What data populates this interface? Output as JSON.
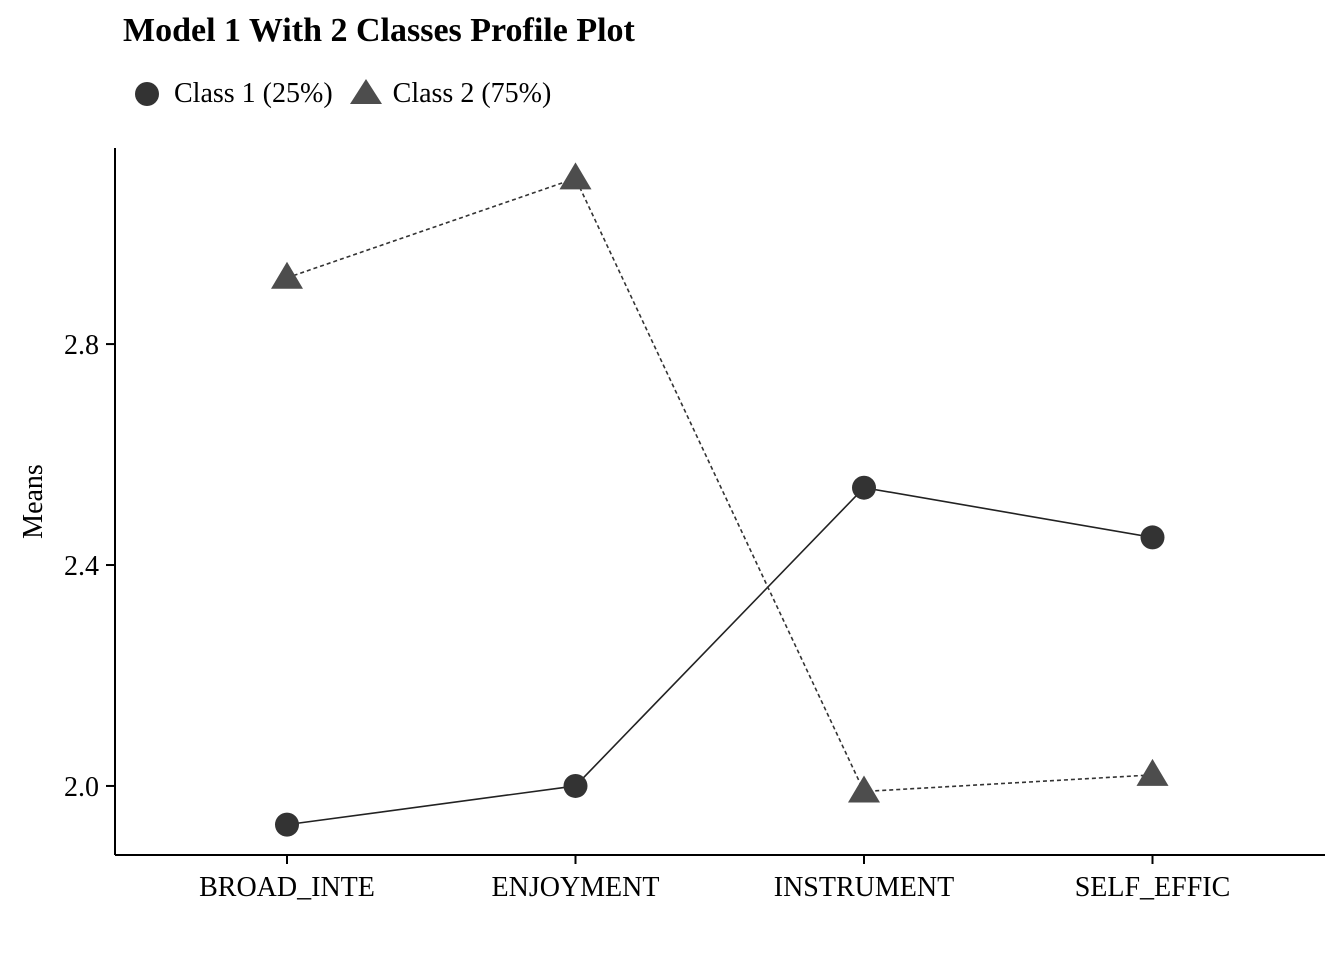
{
  "chart_data": {
    "type": "line",
    "title": "Model 1 With 2 Classes Profile Plot",
    "xlabel": "",
    "ylabel": "Means",
    "categories": [
      "BROAD_INTE",
      "ENJOYMENT",
      "INSTRUMENT",
      "SELF_EFFIC"
    ],
    "ylim": [
      1.875,
      3.155
    ],
    "yticks": [
      "2.0",
      "2.4",
      "2.8"
    ],
    "grid": false,
    "legend_position": "top-left",
    "series": [
      {
        "name": "Class 1 (25%)",
        "marker": "circle",
        "line": "solid",
        "color": "#333333",
        "values": [
          1.93,
          2.0,
          2.54,
          2.45
        ]
      },
      {
        "name": "Class 2 (75%)",
        "marker": "triangle",
        "line": "dotted",
        "color": "#4d4d4d",
        "values": [
          2.92,
          3.1,
          1.99,
          2.02
        ]
      }
    ]
  }
}
